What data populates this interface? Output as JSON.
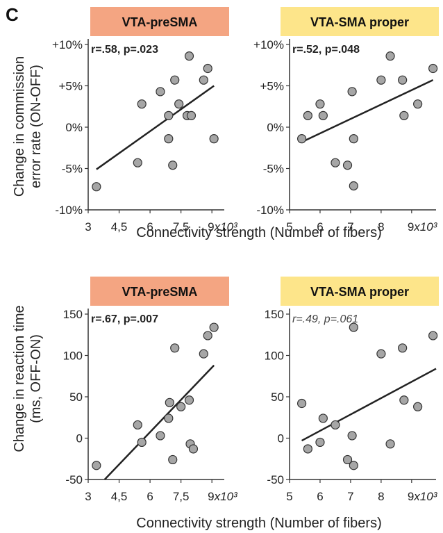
{
  "panel_label": "C",
  "row_ylabels": [
    [
      "Change in commission",
      "error rate (ON-OFF)"
    ],
    [
      "Change in reaction time",
      "(ms, OFF-ON)"
    ]
  ],
  "row_xlabel": "Connectivity strength (Number of fibers)",
  "colors": {
    "presma_banner": "#f4a582",
    "sma_banner": "#fde58a",
    "point_fill": "#a6a6a6",
    "point_stroke": "#333333",
    "line": "#222222"
  },
  "chart_data": [
    {
      "type": "scatter",
      "title": "VTA-preSMA",
      "annotation": "r=.58, p=.023",
      "annotation_italic": false,
      "x_ticks": [
        "3",
        "4,5",
        "6",
        "7,5",
        "9"
      ],
      "x_tick_values": [
        3,
        4.5,
        6,
        7.5,
        9
      ],
      "x_unit_label": "x10³",
      "y_ticks": [
        "+10%",
        "+5%",
        "0%",
        "-5%",
        "-10%"
      ],
      "y_tick_values": [
        10,
        5,
        0,
        -5,
        -10
      ],
      "xlim": [
        3,
        9.6
      ],
      "ylim": [
        -10,
        10
      ],
      "points": [
        [
          3.4,
          -7.2
        ],
        [
          5.4,
          -4.3
        ],
        [
          5.6,
          2.8
        ],
        [
          6.5,
          4.3
        ],
        [
          6.9,
          1.4
        ],
        [
          6.9,
          -1.4
        ],
        [
          7.1,
          -4.6
        ],
        [
          7.2,
          5.7
        ],
        [
          7.4,
          2.8
        ],
        [
          7.8,
          1.4
        ],
        [
          7.9,
          8.6
        ],
        [
          8,
          1.4
        ],
        [
          8.6,
          5.7
        ],
        [
          8.8,
          7.1
        ],
        [
          9.1,
          -1.4
        ]
      ],
      "fit": [
        [
          3.4,
          -5.1
        ],
        [
          9.1,
          5
        ]
      ]
    },
    {
      "type": "scatter",
      "title": "VTA-SMA proper",
      "annotation": "r=.52, p=.048",
      "annotation_italic": false,
      "x_ticks": [
        "5",
        "6",
        "7",
        "8",
        "9"
      ],
      "x_tick_values": [
        5,
        6,
        7,
        8,
        9
      ],
      "x_unit_label": "x10³",
      "y_ticks": [
        "+10%",
        "+5%",
        "0%",
        "-5%",
        "-10%"
      ],
      "y_tick_values": [
        10,
        5,
        0,
        -5,
        -10
      ],
      "xlim": [
        5,
        9.8
      ],
      "ylim": [
        -10,
        10
      ],
      "points": [
        [
          5.4,
          -1.4
        ],
        [
          5.6,
          1.4
        ],
        [
          6,
          2.8
        ],
        [
          6.1,
          1.4
        ],
        [
          6.5,
          -4.3
        ],
        [
          6.9,
          -4.6
        ],
        [
          7.05,
          4.3
        ],
        [
          7.1,
          -1.4
        ],
        [
          7.1,
          -7.1
        ],
        [
          8,
          5.7
        ],
        [
          8.3,
          8.6
        ],
        [
          8.7,
          5.7
        ],
        [
          8.75,
          1.4
        ],
        [
          9.2,
          2.8
        ],
        [
          9.7,
          7.1
        ]
      ],
      "fit": [
        [
          5.4,
          -1.8
        ],
        [
          9.7,
          5.7
        ]
      ]
    },
    {
      "type": "scatter",
      "title": "VTA-preSMA",
      "annotation": "r=.67, p=.007",
      "annotation_italic": false,
      "x_ticks": [
        "3",
        "4,5",
        "6",
        "7,5",
        "9"
      ],
      "x_tick_values": [
        3,
        4.5,
        6,
        7.5,
        9
      ],
      "x_unit_label": "x10³",
      "y_ticks": [
        "150",
        "100",
        "50",
        "0",
        "-50"
      ],
      "y_tick_values": [
        150,
        100,
        50,
        0,
        -50
      ],
      "xlim": [
        3,
        9.6
      ],
      "ylim": [
        -50,
        150
      ],
      "points": [
        [
          3.4,
          -33
        ],
        [
          5.4,
          16
        ],
        [
          5.6,
          -5
        ],
        [
          6.5,
          3
        ],
        [
          6.9,
          24
        ],
        [
          6.95,
          43
        ],
        [
          7.1,
          -26
        ],
        [
          7.2,
          109
        ],
        [
          7.5,
          38
        ],
        [
          7.9,
          46
        ],
        [
          7.95,
          -7
        ],
        [
          8.1,
          -13
        ],
        [
          8.6,
          102
        ],
        [
          8.8,
          124
        ],
        [
          9.1,
          134
        ]
      ],
      "fit": [
        [
          3.8,
          -50
        ],
        [
          9.1,
          88
        ]
      ]
    },
    {
      "type": "scatter",
      "title": "VTA-SMA proper",
      "annotation": "r=.49, p=.061",
      "annotation_italic": true,
      "x_ticks": [
        "5",
        "6",
        "7",
        "8",
        "9"
      ],
      "x_tick_values": [
        5,
        6,
        7,
        8,
        9
      ],
      "x_unit_label": "x10³",
      "y_ticks": [
        "150",
        "100",
        "50",
        "0",
        "-50"
      ],
      "y_tick_values": [
        150,
        100,
        50,
        0,
        -50
      ],
      "xlim": [
        5,
        9.8
      ],
      "ylim": [
        -50,
        150
      ],
      "points": [
        [
          5.4,
          42
        ],
        [
          5.6,
          -13
        ],
        [
          6,
          -5
        ],
        [
          6.1,
          24
        ],
        [
          6.5,
          16
        ],
        [
          6.9,
          -26
        ],
        [
          7.05,
          3
        ],
        [
          7.1,
          -33
        ],
        [
          7.1,
          134
        ],
        [
          8,
          102
        ],
        [
          8.3,
          -7
        ],
        [
          8.7,
          109
        ],
        [
          8.75,
          46
        ],
        [
          9.2,
          38
        ],
        [
          9.7,
          124
        ]
      ],
      "fit": [
        [
          5.4,
          -3
        ],
        [
          9.8,
          84
        ]
      ]
    }
  ]
}
